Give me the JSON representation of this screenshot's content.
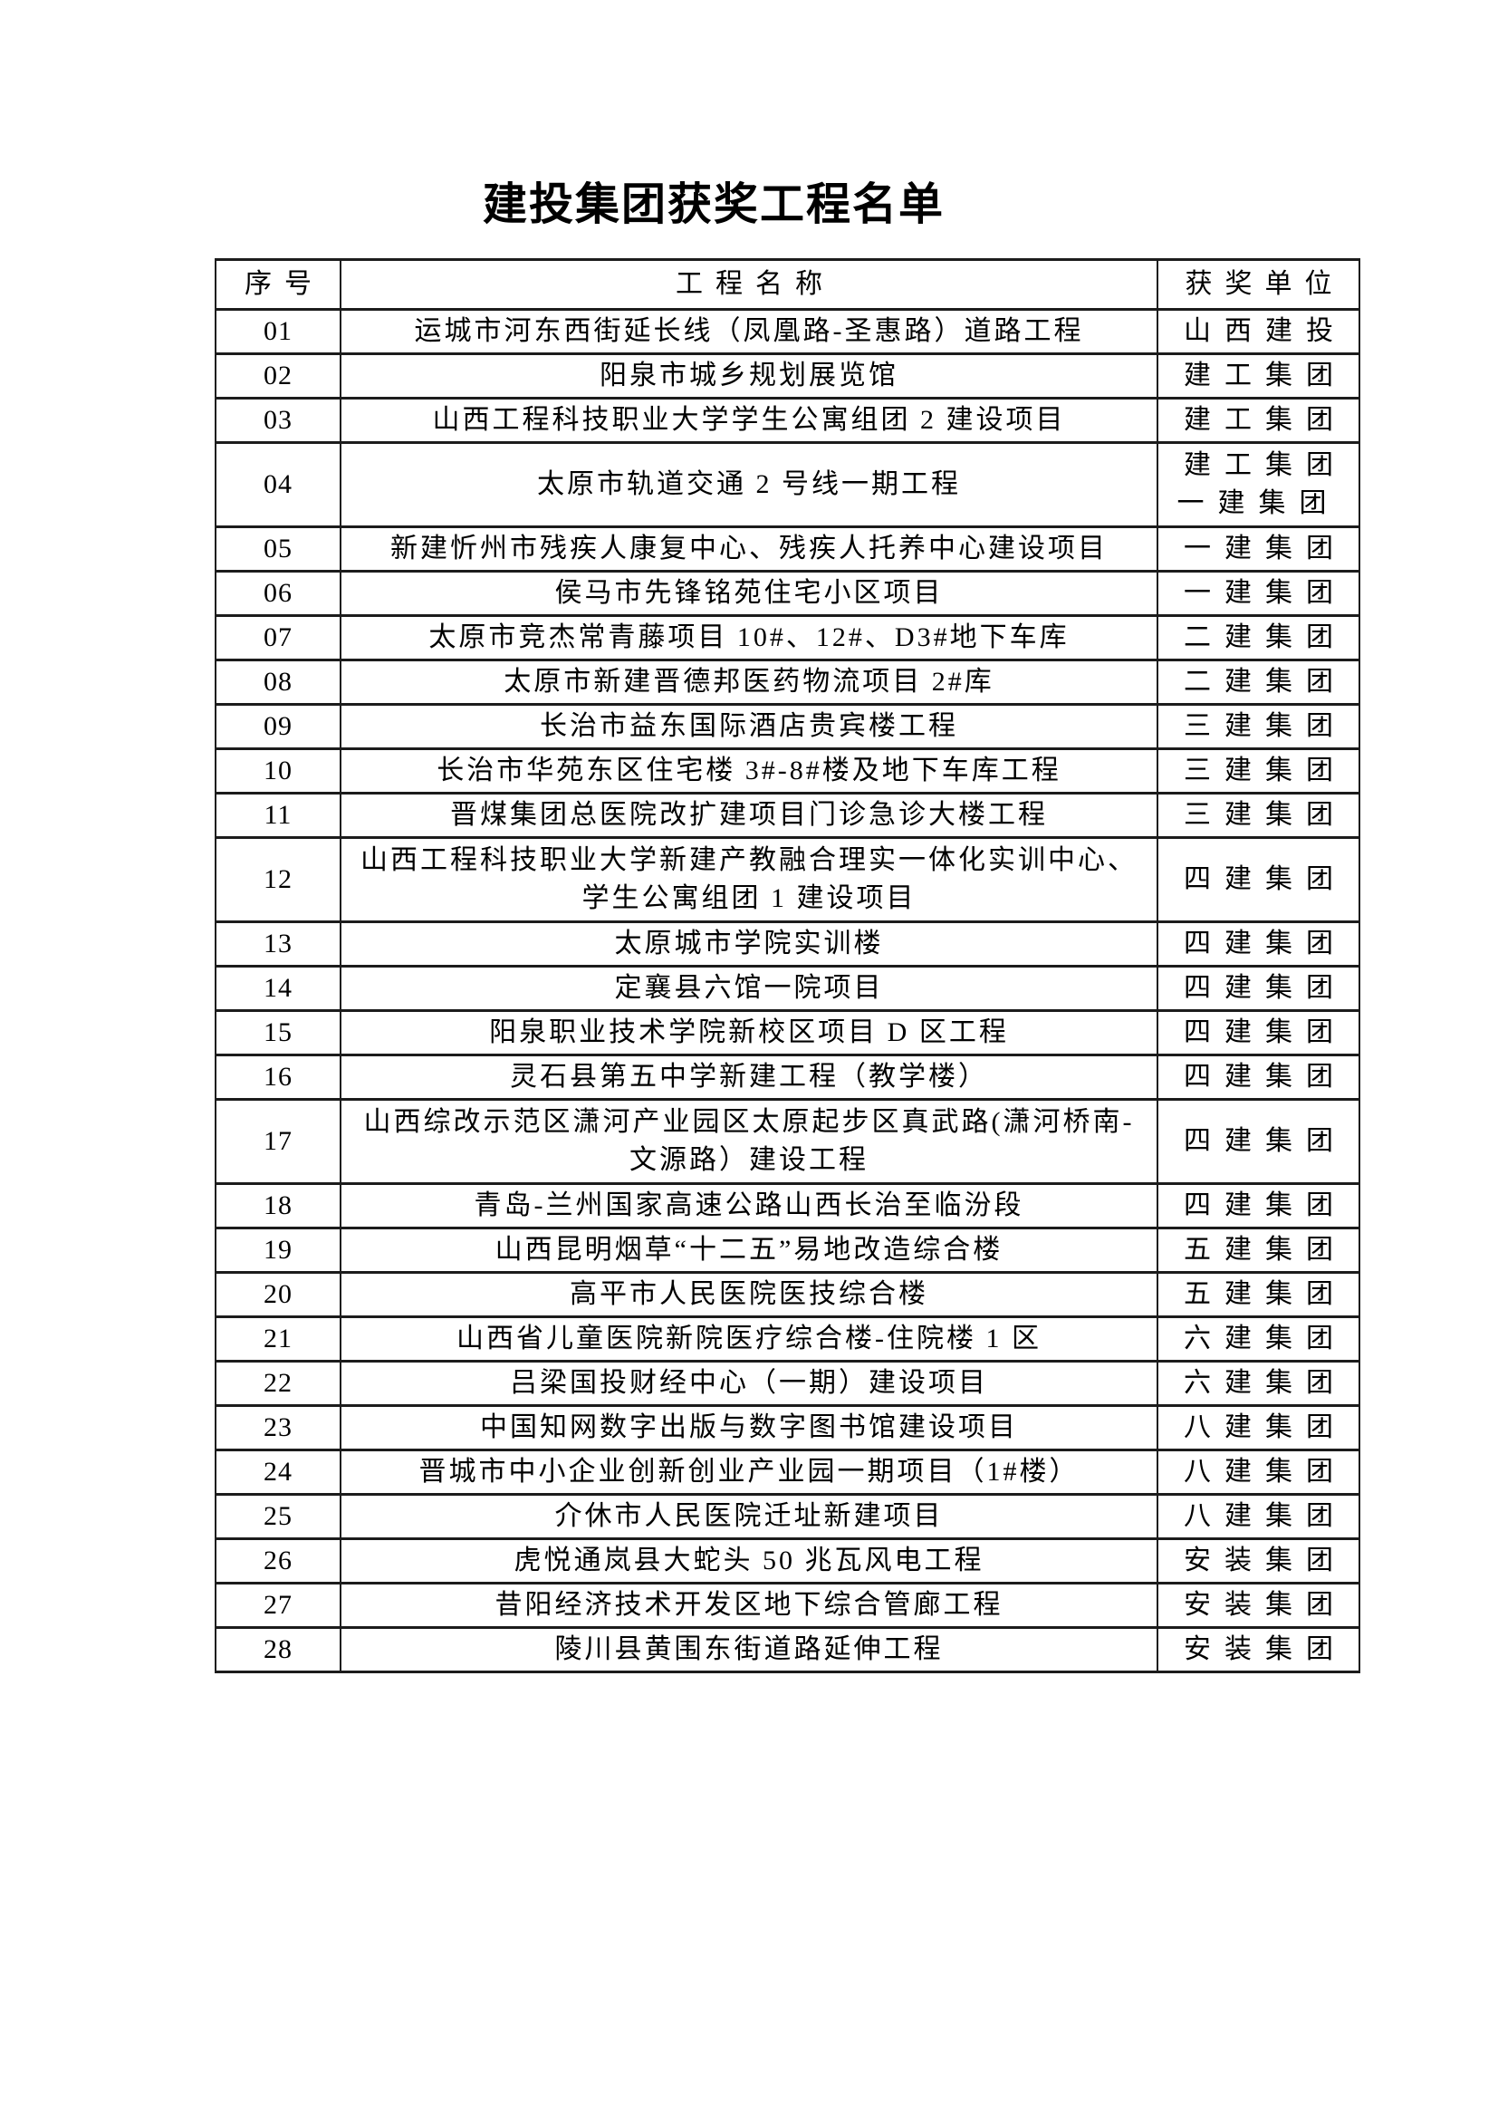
{
  "page": {
    "title": "建投集团获奖工程名单"
  },
  "table": {
    "columns": [
      {
        "key": "no",
        "label": "序号"
      },
      {
        "key": "name",
        "label": "工程名称"
      },
      {
        "key": "unit",
        "label": "获奖单位"
      }
    ],
    "rows": [
      {
        "no": "01",
        "name": "运城市河东西街延长线（凤凰路-圣惠路）道路工程",
        "unit": "山西建投",
        "tall": false
      },
      {
        "no": "02",
        "name": "阳泉市城乡规划展览馆",
        "unit": "建工集团",
        "tall": false
      },
      {
        "no": "03",
        "name": "山西工程科技职业大学学生公寓组团 2 建设项目",
        "unit": "建工集团",
        "tall": false
      },
      {
        "no": "04",
        "name": "太原市轨道交通 2 号线一期工程",
        "unit": "建工集团\n一建集团",
        "tall": true
      },
      {
        "no": "05",
        "name": "新建忻州市残疾人康复中心、残疾人托养中心建设项目",
        "unit": "一建集团",
        "tall": false
      },
      {
        "no": "06",
        "name": "侯马市先锋铭苑住宅小区项目",
        "unit": "一建集团",
        "tall": false
      },
      {
        "no": "07",
        "name": "太原市竞杰常青藤项目 10#、12#、D3#地下车库",
        "unit": "二建集团",
        "tall": false
      },
      {
        "no": "08",
        "name": "太原市新建晋德邦医药物流项目 2#库",
        "unit": "二建集团",
        "tall": false
      },
      {
        "no": "09",
        "name": "长治市益东国际酒店贵宾楼工程",
        "unit": "三建集团",
        "tall": false
      },
      {
        "no": "10",
        "name": "长治市华苑东区住宅楼 3#-8#楼及地下车库工程",
        "unit": "三建集团",
        "tall": false
      },
      {
        "no": "11",
        "name": "晋煤集团总医院改扩建项目门诊急诊大楼工程",
        "unit": "三建集团",
        "tall": false
      },
      {
        "no": "12",
        "name": "山西工程科技职业大学新建产教融合理实一体化实训中心、\n学生公寓组团 1 建设项目",
        "unit": "四建集团",
        "tall": true
      },
      {
        "no": "13",
        "name": "太原城市学院实训楼",
        "unit": "四建集团",
        "tall": false
      },
      {
        "no": "14",
        "name": "定襄县六馆一院项目",
        "unit": "四建集团",
        "tall": false
      },
      {
        "no": "15",
        "name": "阳泉职业技术学院新校区项目 D 区工程",
        "unit": "四建集团",
        "tall": false
      },
      {
        "no": "16",
        "name": "灵石县第五中学新建工程（教学楼）",
        "unit": "四建集团",
        "tall": false
      },
      {
        "no": "17",
        "name": "山西综改示范区潇河产业园区太原起步区真武路(潇河桥南-\n文源路）建设工程",
        "unit": "四建集团",
        "tall": true
      },
      {
        "no": "18",
        "name": "青岛-兰州国家高速公路山西长治至临汾段",
        "unit": "四建集团",
        "tall": false
      },
      {
        "no": "19",
        "name": "山西昆明烟草“十二五”易地改造综合楼",
        "unit": "五建集团",
        "tall": false
      },
      {
        "no": "20",
        "name": "高平市人民医院医技综合楼",
        "unit": "五建集团",
        "tall": false
      },
      {
        "no": "21",
        "name": "山西省儿童医院新院医疗综合楼-住院楼 1 区",
        "unit": "六建集团",
        "tall": false
      },
      {
        "no": "22",
        "name": "吕梁国投财经中心（一期）建设项目",
        "unit": "六建集团",
        "tall": false
      },
      {
        "no": "23",
        "name": "中国知网数字出版与数字图书馆建设项目",
        "unit": "八建集团",
        "tall": false
      },
      {
        "no": "24",
        "name": "晋城市中小企业创新创业产业园一期项目（1#楼）",
        "unit": "八建集团",
        "tall": false
      },
      {
        "no": "25",
        "name": "介休市人民医院迁址新建项目",
        "unit": "八建集团",
        "tall": false
      },
      {
        "no": "26",
        "name": "虎悦通岚县大蛇头 50 兆瓦风电工程",
        "unit": "安装集团",
        "tall": false
      },
      {
        "no": "27",
        "name": "昔阳经济技术开发区地下综合管廊工程",
        "unit": "安装集团",
        "tall": false
      },
      {
        "no": "28",
        "name": "陵川县黄围东街道路延伸工程",
        "unit": "安装集团",
        "tall": false
      }
    ]
  }
}
